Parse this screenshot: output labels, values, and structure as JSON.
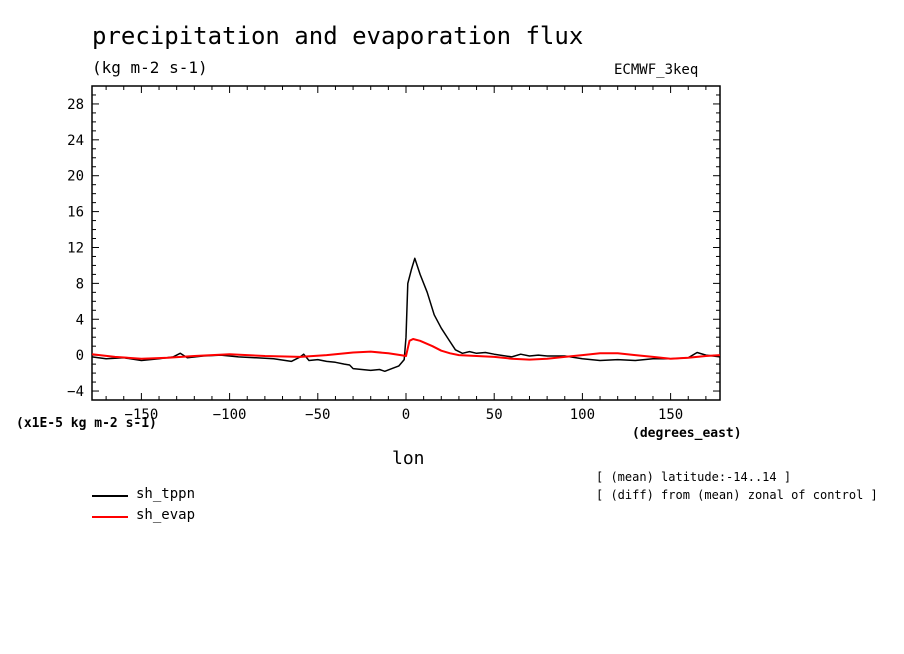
{
  "chart_data": {
    "type": "line",
    "title": "precipitation and evaporation flux",
    "units": "(kg m-2 s-1)",
    "model_label": "ECMWF_3keq",
    "scale_label": "(x1E-5 kg m-2 s-1)",
    "xlabel": "lon",
    "x_units": "(degrees_east)",
    "notes": [
      "[ (mean) latitude:-14..14 ]",
      "[ (diff) from (mean) zonal of control ]"
    ],
    "xlim": [
      -178,
      178
    ],
    "ylim": [
      -5,
      30
    ],
    "x_ticks": [
      -150,
      -100,
      -50,
      0,
      50,
      100,
      150
    ],
    "y_ticks": [
      -4,
      0,
      4,
      8,
      12,
      16,
      20,
      24,
      28
    ],
    "grid": false,
    "series": [
      {
        "name": "sh_tppn",
        "color": "#000000",
        "x": [
          -178,
          -170,
          -160,
          -150,
          -140,
          -132,
          -128,
          -124,
          -115,
          -105,
          -95,
          -85,
          -75,
          -65,
          -60,
          -58,
          -55,
          -50,
          -45,
          -40,
          -35,
          -32,
          -30,
          -25,
          -20,
          -15,
          -12,
          -8,
          -4,
          -1,
          0,
          1,
          3,
          5,
          8,
          12,
          16,
          20,
          24,
          28,
          32,
          36,
          40,
          45,
          50,
          60,
          65,
          70,
          75,
          80,
          90,
          100,
          110,
          120,
          130,
          140,
          150,
          160,
          165,
          170,
          178
        ],
        "y": [
          -0.2,
          -0.4,
          -0.3,
          -0.6,
          -0.4,
          -0.2,
          0.2,
          -0.3,
          -0.1,
          0.0,
          -0.2,
          -0.3,
          -0.4,
          -0.7,
          -0.2,
          0.1,
          -0.6,
          -0.5,
          -0.7,
          -0.8,
          -1.0,
          -1.1,
          -1.5,
          -1.6,
          -1.7,
          -1.6,
          -1.8,
          -1.5,
          -1.2,
          -0.5,
          2.0,
          8.0,
          9.5,
          10.8,
          9.0,
          7.0,
          4.5,
          3.0,
          1.8,
          0.6,
          0.2,
          0.4,
          0.2,
          0.3,
          0.1,
          -0.2,
          0.1,
          -0.1,
          0.0,
          -0.1,
          -0.1,
          -0.4,
          -0.6,
          -0.5,
          -0.6,
          -0.4,
          -0.4,
          -0.3,
          0.3,
          0.0,
          -0.2
        ]
      },
      {
        "name": "sh_evap",
        "color": "#ff0000",
        "x": [
          -178,
          -165,
          -150,
          -135,
          -120,
          -100,
          -80,
          -60,
          -45,
          -30,
          -20,
          -10,
          -3,
          0,
          2,
          4,
          8,
          15,
          20,
          25,
          30,
          40,
          50,
          60,
          70,
          80,
          90,
          100,
          110,
          120,
          130,
          140,
          150,
          160,
          170,
          178
        ],
        "y": [
          0.1,
          -0.2,
          -0.4,
          -0.3,
          -0.1,
          0.1,
          -0.1,
          -0.2,
          0.0,
          0.3,
          0.4,
          0.2,
          0.0,
          -0.1,
          1.6,
          1.8,
          1.6,
          1.0,
          0.5,
          0.2,
          0.0,
          -0.1,
          -0.2,
          -0.4,
          -0.5,
          -0.4,
          -0.2,
          0.0,
          0.2,
          0.2,
          0.0,
          -0.2,
          -0.4,
          -0.3,
          -0.1,
          0.0
        ]
      }
    ]
  }
}
